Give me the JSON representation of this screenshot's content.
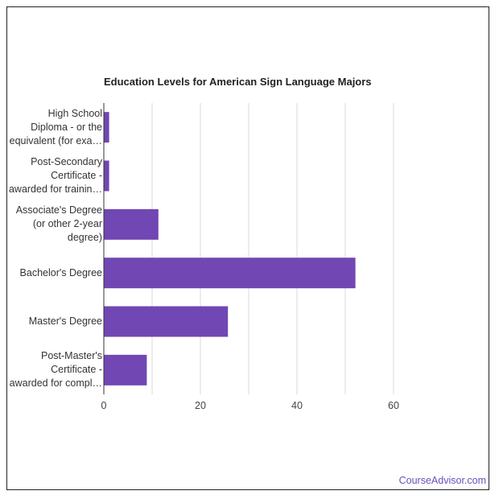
{
  "chart_data": {
    "type": "bar",
    "orientation": "horizontal",
    "title": "Education Levels for American Sign Language Majors",
    "categories": [
      [
        "High School",
        "Diploma - or the",
        "equivalent (for exa…"
      ],
      [
        "Post-Secondary",
        "Certificate -",
        "awarded for trainin…"
      ],
      [
        "Associate's Degree",
        "(or other 2-year",
        "degree)"
      ],
      [
        "Bachelor's Degree"
      ],
      [
        "Master's Degree"
      ],
      [
        "Post-Master's",
        "Certificate -",
        "awarded for compl…"
      ]
    ],
    "values": [
      1.1,
      1.1,
      11.3,
      52.1,
      25.7,
      8.9
    ],
    "xlim": [
      0,
      60
    ],
    "x_ticks": [
      "0",
      "20",
      "40",
      "60"
    ],
    "grid": true,
    "bar_color": "#7047b3",
    "grid_color": "#d9d9d9",
    "axis_color": "#333333"
  },
  "watermark": "CourseAdvisor.com"
}
